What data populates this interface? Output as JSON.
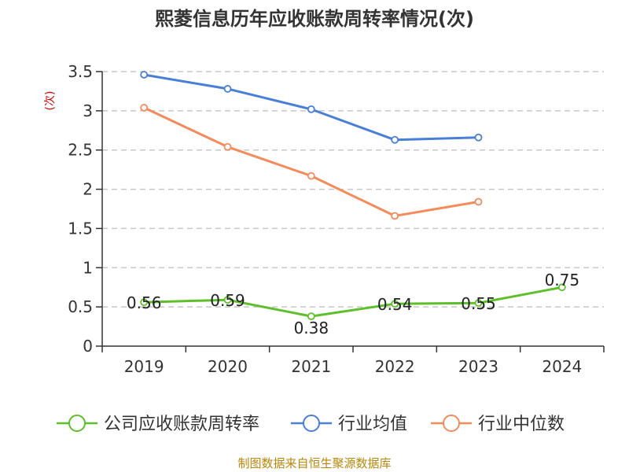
{
  "title": "熙菱信息历年应收账款周转率情况(次)",
  "source": "制图数据来自恒生聚源数据库",
  "chart_data": {
    "type": "line",
    "title": "熙菱信息历年应收账款周转率情况(次)",
    "ylabel": "(次)",
    "xlabel": "",
    "categories": [
      "2019",
      "2020",
      "2021",
      "2022",
      "2023",
      "2024"
    ],
    "ylim": [
      0,
      3.5
    ],
    "yticks": [
      "0",
      "0.5",
      "1",
      "1.5",
      "2",
      "2.5",
      "3",
      "3.5"
    ],
    "grid": "horizontal-dashed",
    "legend_position": "bottom",
    "series": [
      {
        "name": "公司应收账款周转率",
        "color": "#5dbf2a",
        "values": [
          0.56,
          0.59,
          0.38,
          0.54,
          0.55,
          0.75
        ],
        "labels": [
          "0.56",
          "0.59",
          "0.38",
          "0.54",
          "0.55",
          "0.75"
        ],
        "show_labels": true
      },
      {
        "name": "行业均值",
        "color": "#4a7fd8",
        "values": [
          3.46,
          3.28,
          3.02,
          2.63,
          2.66,
          null
        ],
        "show_labels": false
      },
      {
        "name": "行业中位数",
        "color": "#f38b5a",
        "values": [
          3.04,
          2.54,
          2.17,
          1.66,
          1.84,
          null
        ],
        "show_labels": false
      }
    ]
  }
}
